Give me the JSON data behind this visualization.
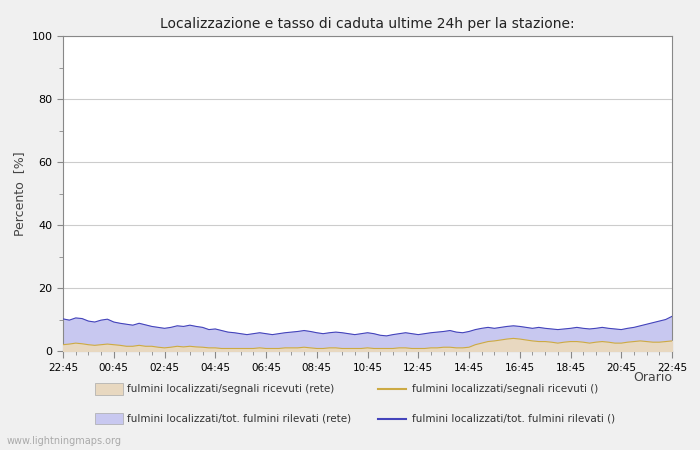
{
  "title": "Localizzazione e tasso di caduta ultime 24h per la stazione:",
  "ylabel": "Percento  [%]",
  "xlabel": "Orario",
  "ylim": [
    0,
    100
  ],
  "yticks": [
    0,
    20,
    40,
    60,
    80,
    100
  ],
  "yticks_minor": [
    10,
    30,
    50,
    70,
    90
  ],
  "x_labels": [
    "22:45",
    "00:45",
    "02:45",
    "04:45",
    "06:45",
    "08:45",
    "10:45",
    "12:45",
    "14:45",
    "16:45",
    "18:45",
    "20:45",
    "22:45"
  ],
  "background_color": "#f0f0f0",
  "plot_bg_color": "#ffffff",
  "grid_color": "#cccccc",
  "fill_blue_color": "#c8c8f0",
  "fill_tan_color": "#e8d8c0",
  "line_blue_color": "#4444bb",
  "line_tan_color": "#ccaa44",
  "watermark": "www.lightningmaps.org",
  "legend": [
    {
      "label": "fulmini localizzati/segnali ricevuti (rete)",
      "type": "fill",
      "color": "#e8d8c0"
    },
    {
      "label": "fulmini localizzati/segnali ricevuti ()",
      "type": "line",
      "color": "#ccaa44"
    },
    {
      "label": "fulmini localizzati/tot. fulmini rilevati (rete)",
      "type": "fill",
      "color": "#c8c8f0"
    },
    {
      "label": "fulmini localizzati/tot. fulmini rilevati ()",
      "type": "line",
      "color": "#4444bb"
    }
  ],
  "n_points": 97,
  "blue_data": [
    10.2,
    9.8,
    10.5,
    10.3,
    9.5,
    9.2,
    9.8,
    10.1,
    9.2,
    8.8,
    8.5,
    8.2,
    8.8,
    8.3,
    7.8,
    7.5,
    7.2,
    7.5,
    8.0,
    7.8,
    8.2,
    7.8,
    7.5,
    6.8,
    7.0,
    6.5,
    6.0,
    5.8,
    5.5,
    5.2,
    5.5,
    5.8,
    5.5,
    5.2,
    5.5,
    5.8,
    6.0,
    6.2,
    6.5,
    6.2,
    5.8,
    5.5,
    5.8,
    6.0,
    5.8,
    5.5,
    5.2,
    5.5,
    5.8,
    5.5,
    5.0,
    4.8,
    5.2,
    5.5,
    5.8,
    5.5,
    5.2,
    5.5,
    5.8,
    6.0,
    6.2,
    6.5,
    6.0,
    5.8,
    6.2,
    6.8,
    7.2,
    7.5,
    7.2,
    7.5,
    7.8,
    8.0,
    7.8,
    7.5,
    7.2,
    7.5,
    7.2,
    7.0,
    6.8,
    7.0,
    7.2,
    7.5,
    7.2,
    7.0,
    7.2,
    7.5,
    7.2,
    7.0,
    6.8,
    7.2,
    7.5,
    8.0,
    8.5,
    9.0,
    9.5,
    10.0,
    11.0
  ],
  "tan_data": [
    2.0,
    2.2,
    2.5,
    2.3,
    2.0,
    1.8,
    2.0,
    2.2,
    2.0,
    1.8,
    1.5,
    1.5,
    1.8,
    1.5,
    1.5,
    1.2,
    1.0,
    1.2,
    1.5,
    1.3,
    1.5,
    1.3,
    1.2,
    1.0,
    1.0,
    0.8,
    0.8,
    0.8,
    0.8,
    0.8,
    0.8,
    1.0,
    0.8,
    0.8,
    0.8,
    1.0,
    1.0,
    1.0,
    1.2,
    1.0,
    0.8,
    0.8,
    1.0,
    1.0,
    0.8,
    0.8,
    0.8,
    0.8,
    1.0,
    0.8,
    0.8,
    0.8,
    0.8,
    1.0,
    1.0,
    0.8,
    0.8,
    0.8,
    1.0,
    1.0,
    1.2,
    1.2,
    1.0,
    1.0,
    1.2,
    2.0,
    2.5,
    3.0,
    3.2,
    3.5,
    3.8,
    4.0,
    3.8,
    3.5,
    3.2,
    3.0,
    3.0,
    2.8,
    2.5,
    2.8,
    3.0,
    3.0,
    2.8,
    2.5,
    2.8,
    3.0,
    2.8,
    2.5,
    2.5,
    2.8,
    3.0,
    3.2,
    3.0,
    2.8,
    2.8,
    3.0,
    3.2
  ]
}
